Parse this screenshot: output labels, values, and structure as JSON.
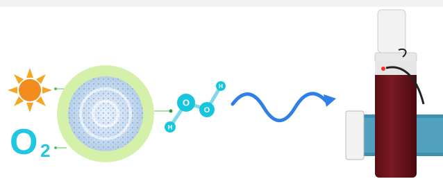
{
  "oxygen_label": {
    "symbol": "O",
    "subscript": "2"
  },
  "molecule": {
    "atoms": [
      "O",
      "O",
      "H",
      "H"
    ]
  }
}
